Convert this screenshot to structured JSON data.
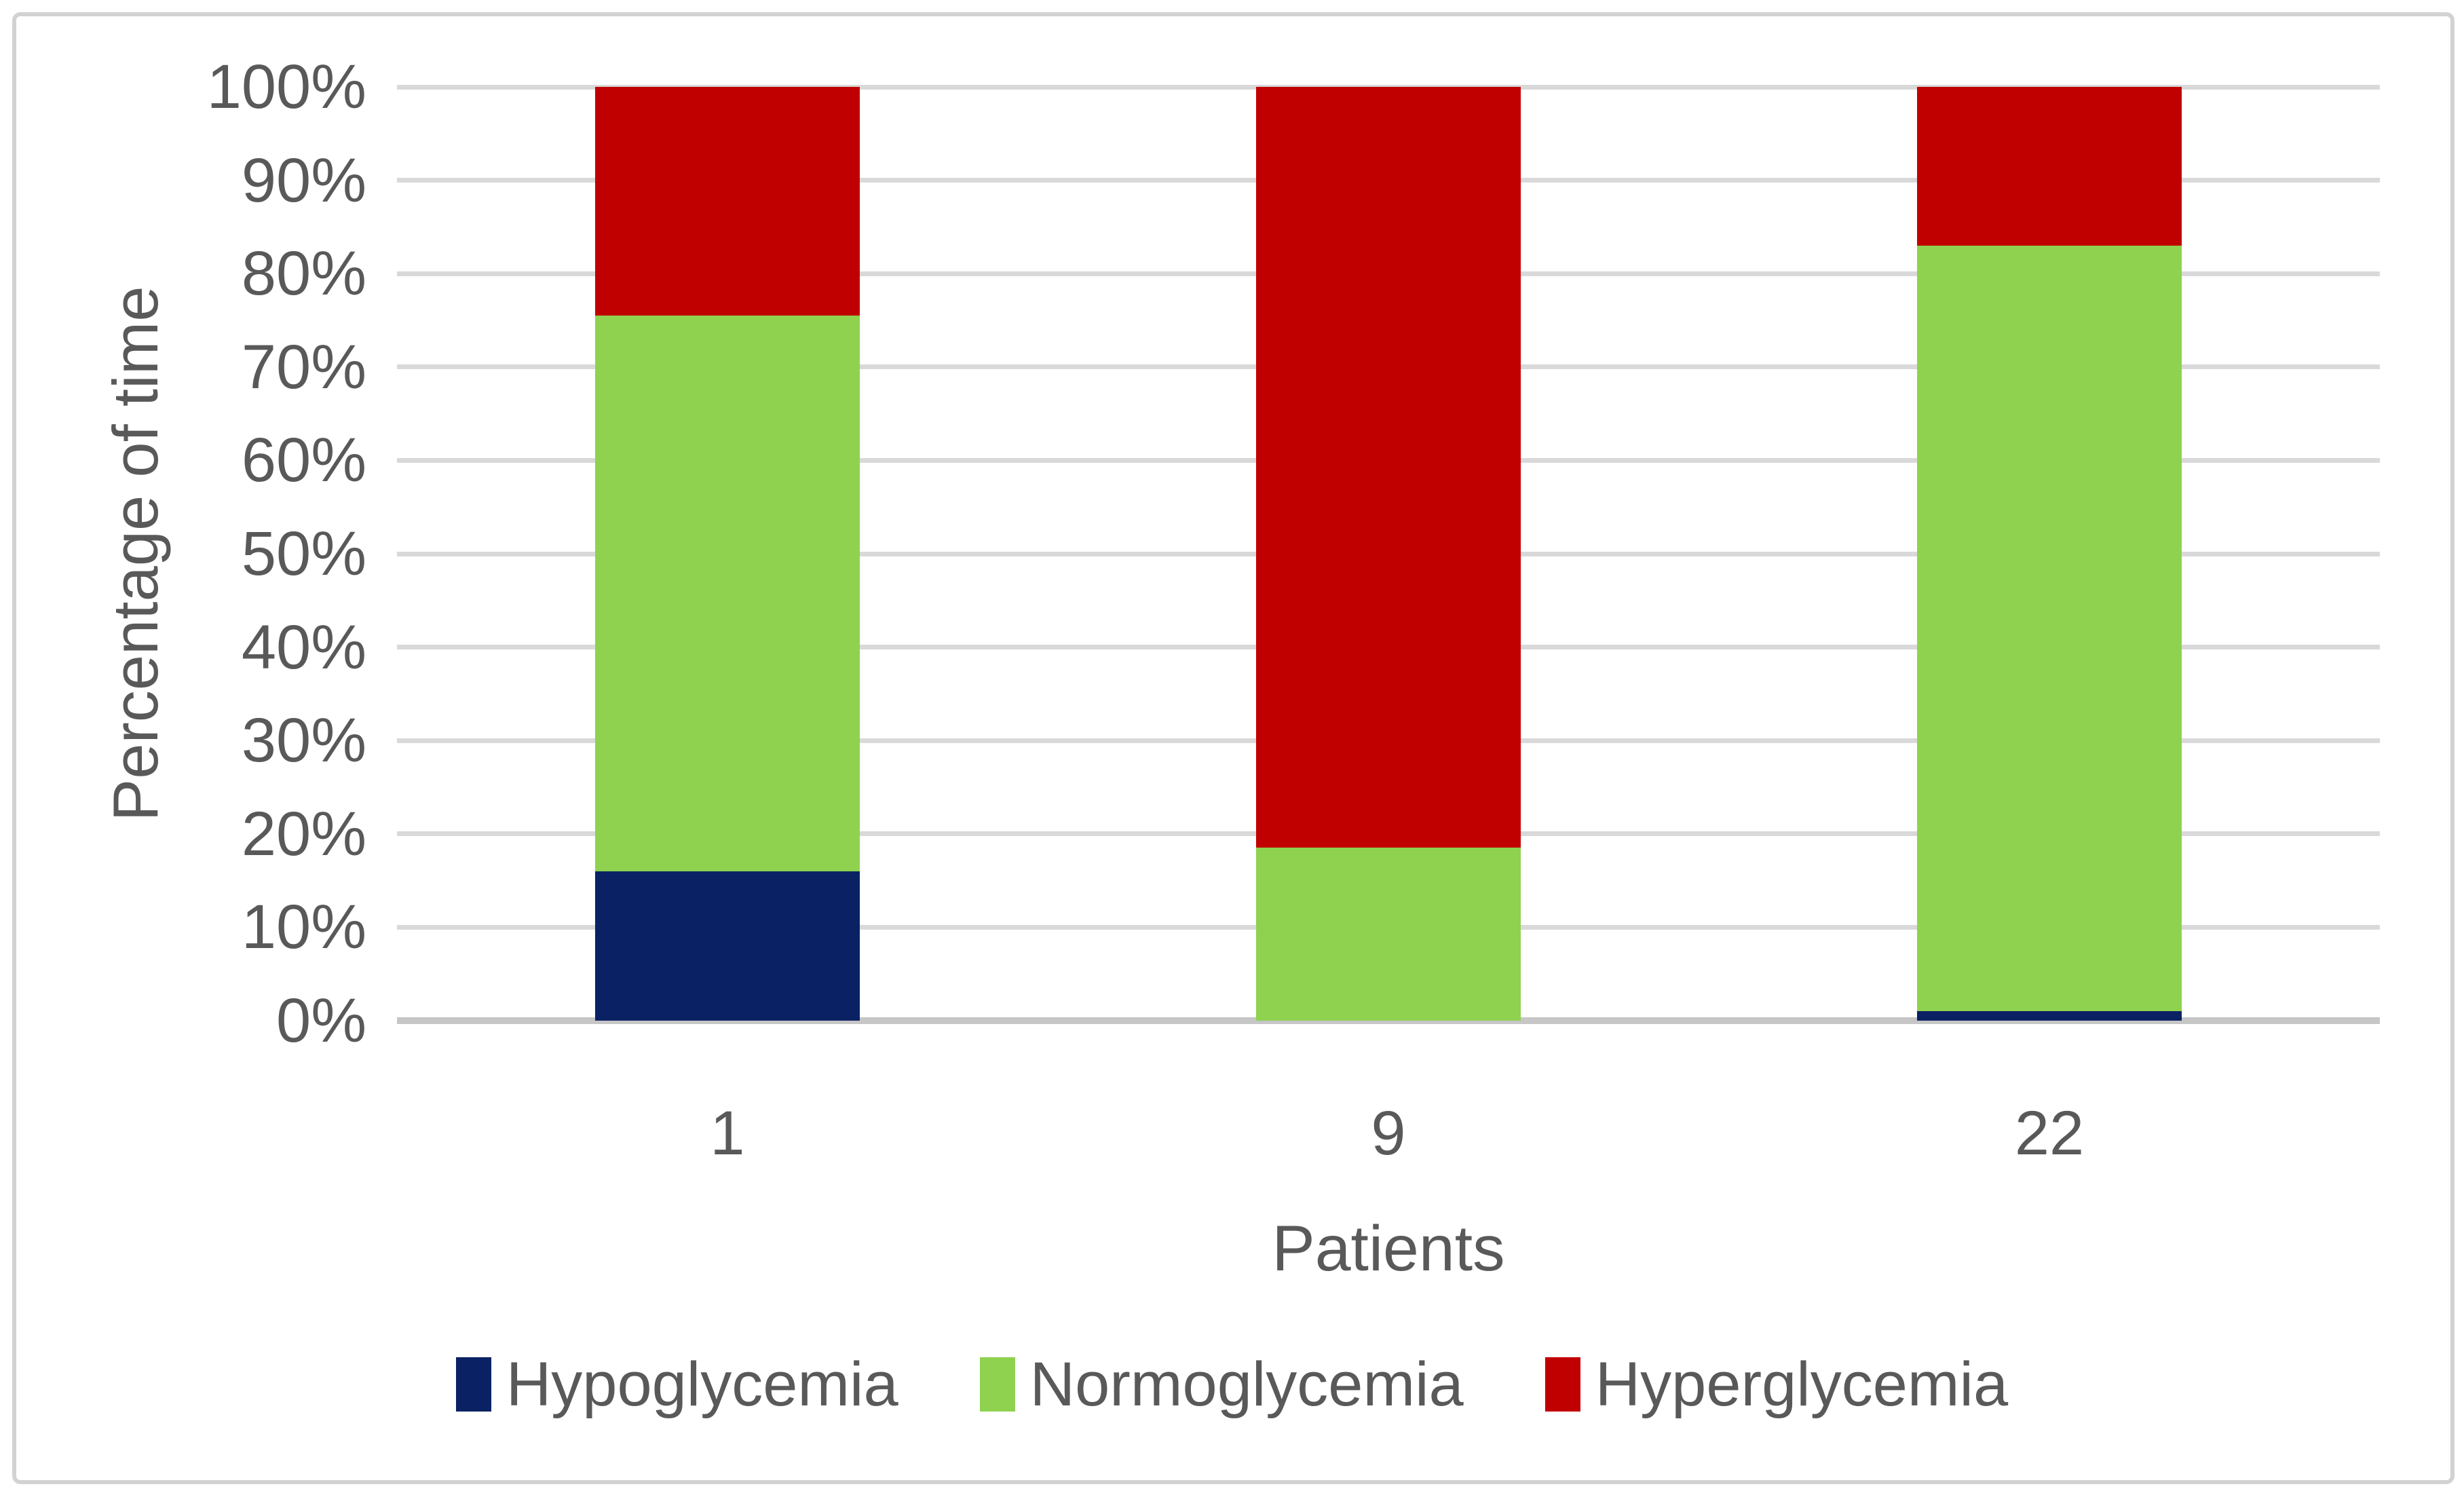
{
  "chart_data": {
    "type": "bar",
    "stacked": true,
    "percent_stacked": true,
    "title": "",
    "xlabel": "Patients",
    "ylabel": "Percentage of time",
    "categories": [
      "1",
      "9",
      "22"
    ],
    "series": [
      {
        "name": "Hypoglycemia",
        "color": "#0a2263",
        "values": [
          16,
          0,
          1
        ]
      },
      {
        "name": "Normoglycemia",
        "color": "#8ed24f",
        "values": [
          59.5,
          18.5,
          82
        ]
      },
      {
        "name": "Hyperglycemia",
        "color": "#c00000",
        "values": [
          24.5,
          81.5,
          17
        ]
      }
    ],
    "ylim": [
      0,
      100
    ],
    "ytick_values": [
      0,
      10,
      20,
      30,
      40,
      50,
      60,
      70,
      80,
      90,
      100
    ],
    "ytick_labels": [
      "0%",
      "10%",
      "20%",
      "30%",
      "40%",
      "50%",
      "60%",
      "70%",
      "80%",
      "90%",
      "100%"
    ],
    "grid": true,
    "gridline_color": "#d9d9d9",
    "axis_line_color": "#c6c6c6",
    "text_color": "#595959",
    "legend_position": "bottom"
  }
}
